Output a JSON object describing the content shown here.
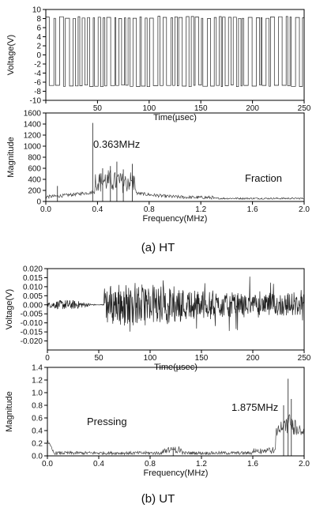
{
  "panels": [
    {
      "caption": "(a)  HT",
      "time_chart": {
        "type": "line",
        "xlabel": "Time(µsec)",
        "ylabel": "Voltage(V)",
        "xlim": [
          0,
          250
        ],
        "ylim": [
          -10,
          10
        ],
        "xticks": [
          0,
          50,
          100,
          150,
          200,
          250
        ],
        "xtick_labels": [
          "",
          "50",
          "100",
          "150",
          "200",
          "250"
        ],
        "yticks": [
          -10,
          -8,
          -6,
          -4,
          -2,
          0,
          2,
          4,
          6,
          8,
          10
        ],
        "ytick_labels": [
          "-10",
          "-8",
          "-6",
          "-4",
          "-2",
          "0",
          "2",
          "4",
          "6",
          "8",
          "10"
        ],
        "series": [
          {
            "x_range": [
              0,
              250
            ],
            "envelope": [
              -7,
              8.5
            ],
            "description_values": "rectangular switching waveform between about -7 V and 8.5 V"
          }
        ]
      },
      "spectrum_chart": {
        "type": "line",
        "xlabel": "Frequency(MHz)",
        "ylabel": "Magnitude",
        "xlim": [
          0,
          2.0
        ],
        "ylim": [
          0,
          1600
        ],
        "xticks": [
          0.0,
          0.4,
          0.8,
          1.2,
          1.6,
          2.0
        ],
        "xtick_labels": [
          "0.0",
          "0.4",
          "0.8",
          "1.2",
          "1.6",
          "2.0"
        ],
        "yticks": [
          0,
          200,
          400,
          600,
          800,
          1000,
          1200,
          1400,
          1600
        ],
        "ytick_labels": [
          "0",
          "200",
          "400",
          "600",
          "800",
          "1000",
          "1200",
          "1400",
          "1600"
        ],
        "peaks": [
          {
            "x": 0.363,
            "y": 1420
          },
          {
            "x": 0.44,
            "y": 600
          },
          {
            "x": 0.5,
            "y": 640
          },
          {
            "x": 0.55,
            "y": 720
          },
          {
            "x": 0.6,
            "y": 580
          },
          {
            "x": 0.67,
            "y": 680
          },
          {
            "x": 0.09,
            "y": 280
          }
        ],
        "annotations": {
          "peak_label": "0.363MHz",
          "condition_label": "Fraction"
        }
      }
    },
    {
      "caption": "(b)  UT",
      "time_chart": {
        "type": "line",
        "xlabel": "Time(µsec)",
        "ylabel": "Voltage(V)",
        "xlim": [
          0,
          250
        ],
        "ylim": [
          -0.025,
          0.02
        ],
        "xticks": [
          0,
          50,
          100,
          150,
          200,
          250
        ],
        "xtick_labels": [
          "0",
          "50",
          "100",
          "150",
          "200",
          "250"
        ],
        "yticks": [
          -0.02,
          -0.015,
          -0.01,
          -0.005,
          0.0,
          0.005,
          0.01,
          0.015,
          0.02
        ],
        "ytick_labels": [
          "-0.020",
          "-0.015",
          "-0.010",
          "-0.005",
          "0.000",
          "0.005",
          "0.010",
          "0.015",
          "0.020"
        ],
        "series": [
          {
            "x_range": [
              0,
              250
            ],
            "burst_start": 55,
            "peak_amplitude": 0.018
          }
        ]
      },
      "spectrum_chart": {
        "type": "line",
        "xlabel": "Frequency(MHz)",
        "ylabel": "Magnitude",
        "xlim": [
          0,
          2.0
        ],
        "ylim": [
          0,
          1.4
        ],
        "xticks": [
          0.0,
          0.4,
          0.8,
          1.2,
          1.6,
          2.0
        ],
        "xtick_labels": [
          "0.0",
          "0.4",
          "0.8",
          "1.2",
          "1.6",
          "2.0"
        ],
        "yticks": [
          0.0,
          0.2,
          0.4,
          0.6,
          0.8,
          1.0,
          1.2,
          1.4
        ],
        "ytick_labels": [
          "0.0",
          "0.2",
          "0.4",
          "0.6",
          "0.8",
          "1.0",
          "1.2",
          "1.4"
        ],
        "peaks": [
          {
            "x": 1.875,
            "y": 1.22
          },
          {
            "x": 1.84,
            "y": 0.8
          },
          {
            "x": 1.9,
            "y": 0.9
          },
          {
            "x": 0.98,
            "y": 0.14
          },
          {
            "x": 0.0,
            "y": 0.28
          }
        ],
        "annotations": {
          "peak_label": "1.875MHz",
          "condition_label": "Pressing"
        }
      }
    }
  ],
  "chart_data": [
    {
      "type": "line",
      "xlabel": "Time(µsec)",
      "ylabel": "Voltage(V)",
      "xlim": [
        0,
        250
      ],
      "ylim": [
        -10,
        10
      ],
      "series": [
        {
          "x": [
            0,
            250
          ],
          "values": [
            -7,
            8.5
          ]
        }
      ]
    },
    {
      "type": "line",
      "xlabel": "Frequency(MHz)",
      "ylabel": "Magnitude",
      "xlim": [
        0,
        2.0
      ],
      "ylim": [
        0,
        1600
      ],
      "series": [
        {
          "x": [
            0.09,
            0.363,
            0.44,
            0.5,
            0.55,
            0.6,
            0.67
          ],
          "values": [
            280,
            1420,
            600,
            640,
            720,
            580,
            680
          ]
        }
      ]
    },
    {
      "type": "line",
      "xlabel": "Time(µsec)",
      "ylabel": "Voltage(V)",
      "xlim": [
        0,
        250
      ],
      "ylim": [
        -0.025,
        0.02
      ],
      "series": [
        {
          "x": [
            55,
            80
          ],
          "values": [
            0.015,
            0.018
          ]
        }
      ]
    },
    {
      "type": "line",
      "xlabel": "Frequency(MHz)",
      "ylabel": "Magnitude",
      "xlim": [
        0,
        2.0
      ],
      "ylim": [
        0,
        1.4
      ],
      "series": [
        {
          "x": [
            0.0,
            0.98,
            1.84,
            1.875,
            1.9
          ],
          "values": [
            0.28,
            0.14,
            0.8,
            1.22,
            0.9
          ]
        }
      ]
    }
  ]
}
